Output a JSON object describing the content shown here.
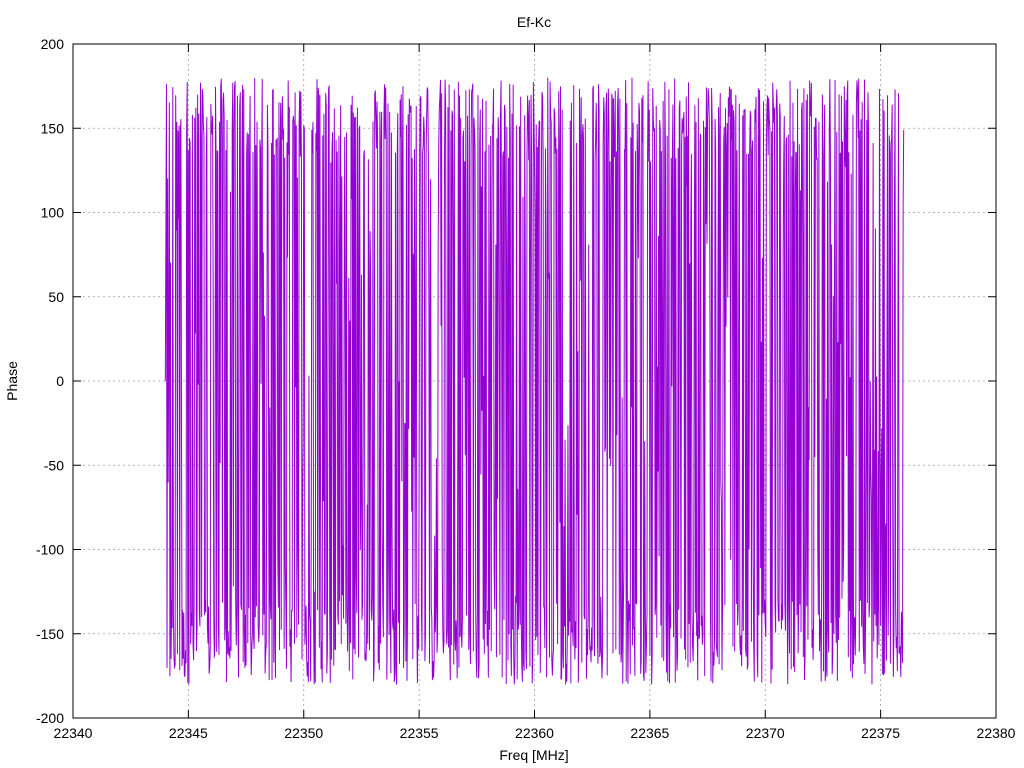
{
  "chart_data": {
    "type": "line",
    "title": "Ef-Kc",
    "xlabel": "Freq [MHz]",
    "ylabel": "Phase",
    "xlim": [
      22340,
      22380
    ],
    "ylim": [
      -200,
      200
    ],
    "x_ticks": [
      22340,
      22345,
      22350,
      22355,
      22360,
      22365,
      22370,
      22375,
      22380
    ],
    "y_ticks": [
      -200,
      -150,
      -100,
      -50,
      0,
      50,
      100,
      150,
      200
    ],
    "x_tick_labels": [
      "22340",
      "22345",
      "22350",
      "22355",
      "22360",
      "22365",
      "22370",
      "22375",
      "22380"
    ],
    "y_tick_labels": [
      "-200",
      "-150",
      "-100",
      "-50",
      "0",
      "50",
      "100",
      "150",
      "200"
    ],
    "grid": true,
    "legend": "none",
    "series": [
      {
        "color": "#9400d3",
        "sampling": {
          "x_start": 22344.0,
          "x_end": 22376.0,
          "step": 0.025
        },
        "phase_wrap": [
          -180,
          180
        ],
        "first_values": [
          0,
          85,
          176,
          -170,
          120,
          -60,
          30,
          165,
          -175,
          70
        ]
      }
    ]
  }
}
